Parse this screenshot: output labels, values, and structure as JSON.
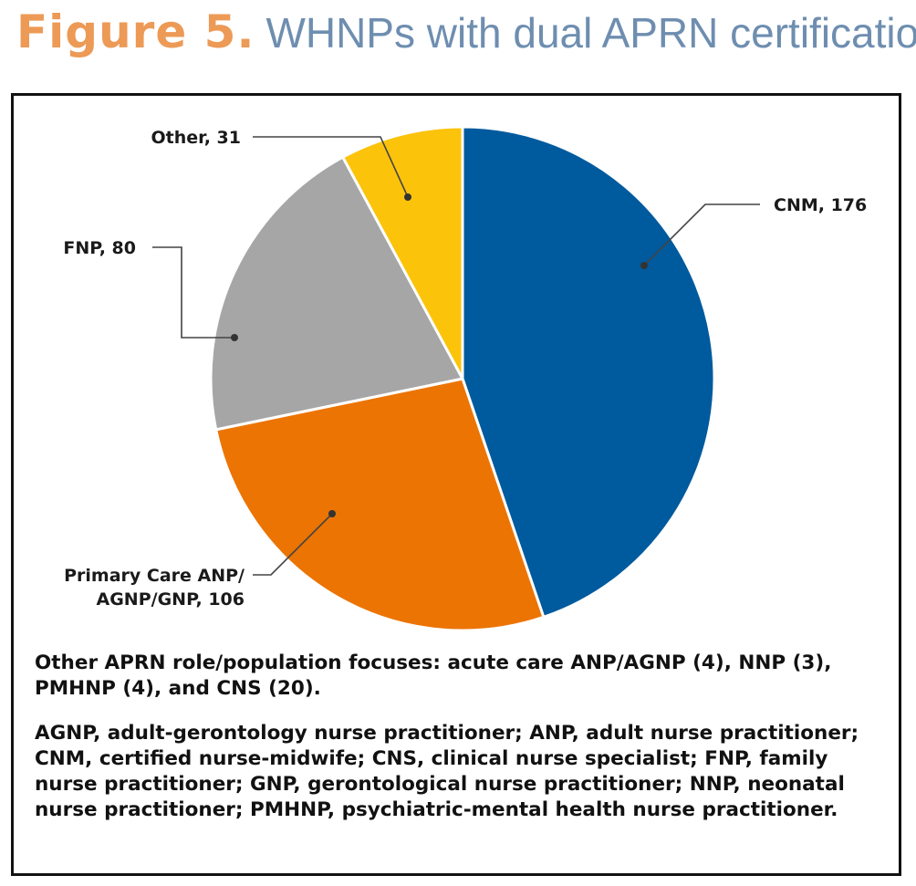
{
  "figure": {
    "label": "Figure 5.",
    "title": "WHNPs with dual APRN certification"
  },
  "chart_data": {
    "type": "pie",
    "slices": [
      {
        "label": "CNM",
        "value": 176,
        "color": "#005a9e"
      },
      {
        "label": "Primary Care ANP/ AGNP/GNP",
        "value": 106,
        "color": "#ec7403"
      },
      {
        "label": "FNP",
        "value": 80,
        "color": "#a6a6a6"
      },
      {
        "label": "Other",
        "value": 31,
        "color": "#fcc30b"
      }
    ],
    "callouts": [
      {
        "lines": [
          "CNM, 176"
        ]
      },
      {
        "lines": [
          "Primary Care ANP/",
          "AGNP/GNP, 106"
        ]
      },
      {
        "lines": [
          "FNP, 80"
        ]
      },
      {
        "lines": [
          "Other, 31"
        ]
      }
    ],
    "start_angle_deg": 0,
    "direction": "clockwise"
  },
  "notes": {
    "other_focuses": "Other APRN role/population focuses: acute care ANP/AGNP (4), NNP (3), PMHNP (4), and CNS (20).",
    "abbreviations": "AGNP, adult-gerontology nurse practitioner; ANP, adult nurse practitioner; CNM, certified nurse-midwife; CNS, clinical nurse specialist; FNP, family nurse practitioner; GNP, gerontological nurse practitioner; NNP, neonatal nurse practitioner; PMHNP, psychiatric-mental health nurse practitioner."
  }
}
